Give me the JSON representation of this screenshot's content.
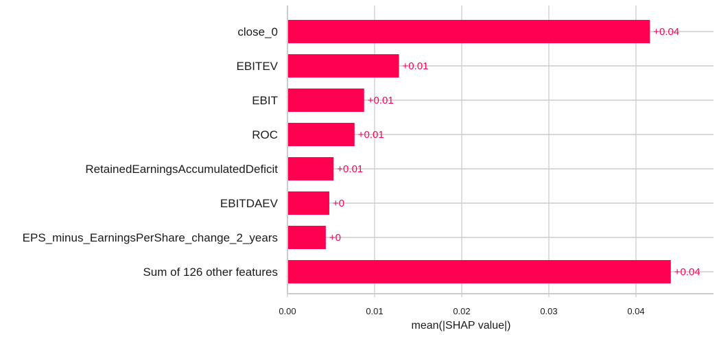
{
  "chart_data": {
    "type": "bar",
    "orientation": "horizontal",
    "categories": [
      "close_0",
      "EBITEV",
      "EBIT",
      "ROC",
      "RetainedEarningsAccumulatedDeficit",
      "EBITDAEV",
      "EPS_minus_EarningsPerShare_change_2_years",
      "Sum of 126 other features"
    ],
    "values": [
      0.0416,
      0.0128,
      0.0088,
      0.0077,
      0.0053,
      0.0048,
      0.0044,
      0.044
    ],
    "data_labels": [
      "+0.04",
      "+0.01",
      "+0.01",
      "+0.01",
      "+0.01",
      "+0",
      "+0",
      "+0.04"
    ],
    "xlabel": "mean(|SHAP value|)",
    "xlim": [
      0,
      0.0489
    ],
    "xticks": [
      0.0,
      0.01,
      0.02,
      0.03,
      0.04
    ],
    "xtick_labels": [
      "0.00",
      "0.01",
      "0.02",
      "0.03",
      "0.04"
    ],
    "grid": true,
    "colors": {
      "bar": "#ff0051",
      "label": "#ff0051",
      "grid": "#cccccc",
      "text": "#1a1a1a"
    }
  }
}
